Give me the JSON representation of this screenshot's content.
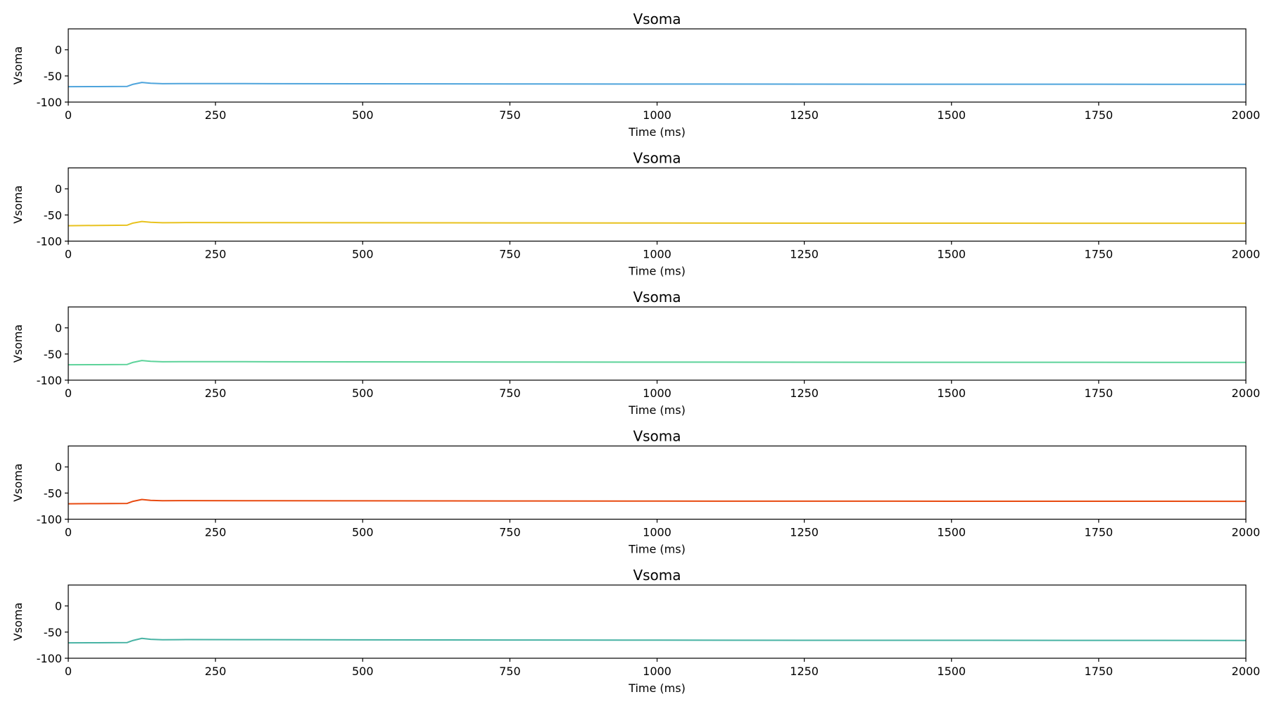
{
  "chart_data": [
    {
      "type": "line",
      "title": "Vsoma",
      "xlabel": "Time (ms)",
      "ylabel": "Vsoma",
      "xlim": [
        0,
        2000
      ],
      "ylim": [
        -100,
        40
      ],
      "xticks": [
        0,
        250,
        500,
        750,
        1000,
        1250,
        1500,
        1750,
        2000
      ],
      "yticks": [
        -100,
        -50,
        0
      ],
      "grid": false,
      "series": [
        {
          "color": "#4ea4dc",
          "x": [
            0,
            50,
            100,
            110,
            125,
            140,
            160,
            200,
            300,
            500,
            750,
            1000,
            1250,
            1500,
            1750,
            2000
          ],
          "y": [
            -70.5,
            -70.3,
            -70.0,
            -66.0,
            -62.5,
            -64.0,
            -64.8,
            -64.6,
            -64.7,
            -65.0,
            -65.3,
            -65.5,
            -65.7,
            -65.8,
            -65.9,
            -66.0
          ]
        }
      ]
    },
    {
      "type": "line",
      "title": "Vsoma",
      "xlabel": "Time (ms)",
      "ylabel": "Vsoma",
      "xlim": [
        0,
        2000
      ],
      "ylim": [
        -100,
        40
      ],
      "xticks": [
        0,
        250,
        500,
        750,
        1000,
        1250,
        1500,
        1750,
        2000
      ],
      "yticks": [
        -100,
        -50,
        0
      ],
      "grid": false,
      "series": [
        {
          "color": "#e8c21e",
          "x": [
            0,
            50,
            100,
            110,
            125,
            140,
            160,
            200,
            300,
            500,
            750,
            1000,
            1250,
            1500,
            1750,
            2000
          ],
          "y": [
            -70.5,
            -70.0,
            -69.5,
            -65.5,
            -62.5,
            -64.0,
            -64.8,
            -64.5,
            -64.6,
            -64.9,
            -65.2,
            -65.4,
            -65.6,
            -65.7,
            -65.8,
            -65.9
          ]
        }
      ]
    },
    {
      "type": "line",
      "title": "Vsoma",
      "xlabel": "Time (ms)",
      "ylabel": "Vsoma",
      "xlim": [
        0,
        2000
      ],
      "ylim": [
        -100,
        40
      ],
      "xticks": [
        0,
        250,
        500,
        750,
        1000,
        1250,
        1500,
        1750,
        2000
      ],
      "yticks": [
        -100,
        -50,
        0
      ],
      "grid": false,
      "series": [
        {
          "color": "#5dd39a",
          "x": [
            0,
            50,
            100,
            110,
            125,
            140,
            160,
            200,
            300,
            500,
            750,
            1000,
            1250,
            1500,
            1750,
            2000
          ],
          "y": [
            -70.5,
            -70.3,
            -70.0,
            -66.0,
            -62.5,
            -64.0,
            -64.8,
            -64.6,
            -64.7,
            -65.0,
            -65.3,
            -65.5,
            -65.7,
            -65.8,
            -65.9,
            -66.0
          ]
        }
      ]
    },
    {
      "type": "line",
      "title": "Vsoma",
      "xlabel": "Time (ms)",
      "ylabel": "Vsoma",
      "xlim": [
        0,
        2000
      ],
      "ylim": [
        -100,
        40
      ],
      "xticks": [
        0,
        250,
        500,
        750,
        1000,
        1250,
        1500,
        1750,
        2000
      ],
      "yticks": [
        -100,
        -50,
        0
      ],
      "grid": false,
      "series": [
        {
          "color": "#e84a10",
          "x": [
            0,
            50,
            100,
            110,
            125,
            140,
            160,
            200,
            300,
            500,
            750,
            1000,
            1250,
            1500,
            1750,
            2000
          ],
          "y": [
            -70.5,
            -70.2,
            -69.8,
            -65.8,
            -62.3,
            -64.0,
            -64.7,
            -64.5,
            -64.6,
            -64.9,
            -65.2,
            -65.4,
            -65.5,
            -65.6,
            -65.7,
            -65.8
          ]
        }
      ]
    },
    {
      "type": "line",
      "title": "Vsoma",
      "xlabel": "Time (ms)",
      "ylabel": "Vsoma",
      "xlim": [
        0,
        2000
      ],
      "ylim": [
        -100,
        40
      ],
      "xticks": [
        0,
        250,
        500,
        750,
        1000,
        1250,
        1500,
        1750,
        2000
      ],
      "yticks": [
        -100,
        -50,
        0
      ],
      "grid": false,
      "series": [
        {
          "color": "#48b3a4",
          "x": [
            0,
            50,
            100,
            110,
            125,
            140,
            160,
            200,
            300,
            500,
            750,
            1000,
            1250,
            1500,
            1750,
            2000
          ],
          "y": [
            -70.5,
            -70.3,
            -70.0,
            -66.0,
            -62.0,
            -63.8,
            -64.6,
            -64.4,
            -64.5,
            -64.8,
            -65.1,
            -65.4,
            -65.6,
            -65.7,
            -65.8,
            -66.0
          ]
        }
      ]
    }
  ]
}
